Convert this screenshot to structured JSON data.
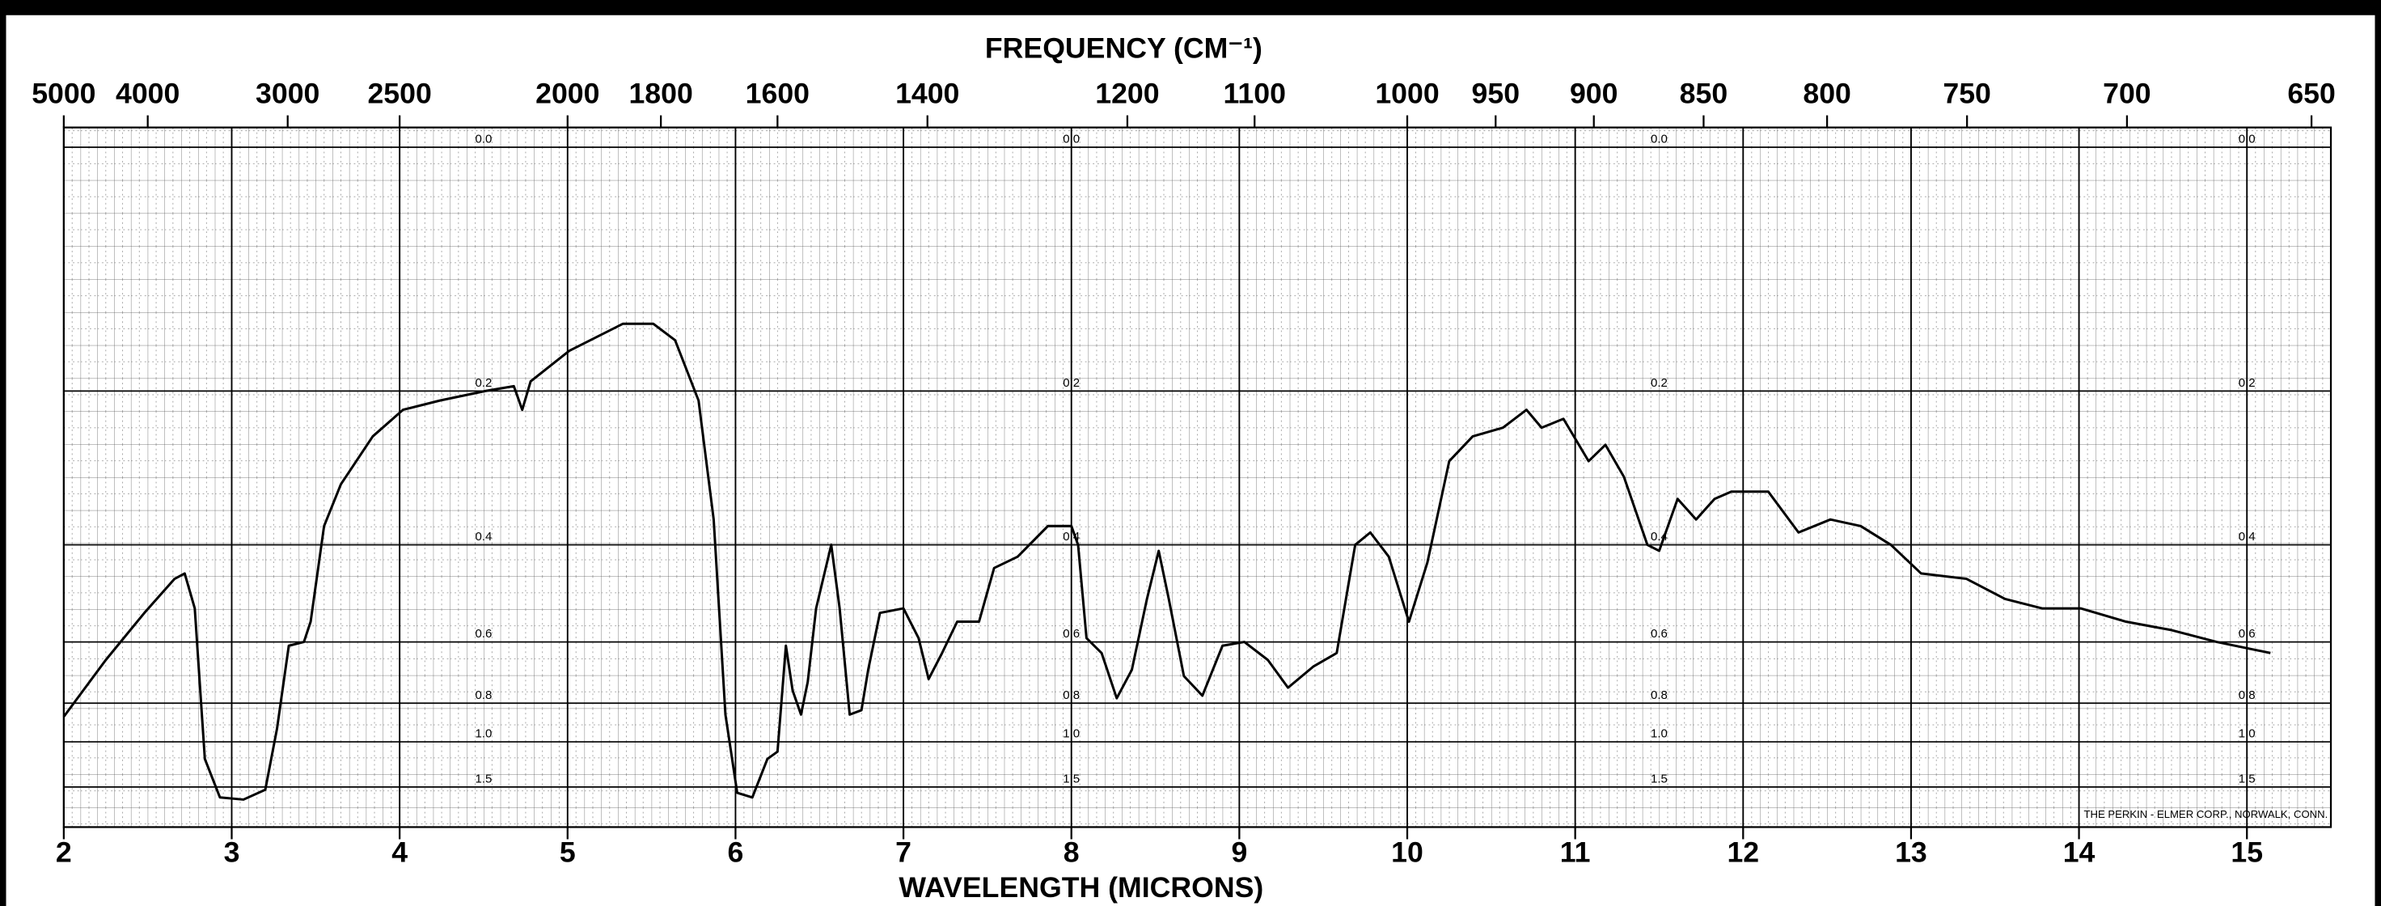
{
  "chart_data": {
    "type": "line",
    "title": "FREQUENCY (CM⁻¹)",
    "xlabel": "WAVELENGTH (MICRONS)",
    "annotation": "THE PERKIN - ELMER CORP., NORWALK, CONN.",
    "x": [
      2.0,
      2.25,
      2.48,
      2.66,
      2.72,
      2.78,
      2.84,
      2.93,
      3.07,
      3.2,
      3.27,
      3.34,
      3.43,
      3.47,
      3.55,
      3.65,
      3.84,
      4.02,
      4.24,
      4.51,
      4.68,
      4.73,
      4.78,
      5.01,
      5.33,
      5.51,
      5.64,
      5.78,
      5.87,
      5.94,
      6.01,
      6.1,
      6.19,
      6.25,
      6.3,
      6.34,
      6.39,
      6.43,
      6.48,
      6.57,
      6.62,
      6.68,
      6.75,
      6.79,
      6.86,
      7.0,
      7.09,
      7.15,
      7.23,
      7.32,
      7.45,
      7.54,
      7.68,
      7.86,
      8.0,
      8.04,
      8.09,
      8.18,
      8.27,
      8.36,
      8.45,
      8.52,
      8.58,
      8.67,
      8.78,
      8.9,
      9.03,
      9.17,
      9.29,
      9.44,
      9.58,
      9.69,
      9.78,
      9.89,
      10.01,
      10.12,
      10.25,
      10.39,
      10.57,
      10.71,
      10.8,
      10.93,
      11.08,
      11.18,
      11.29,
      11.43,
      11.5,
      11.61,
      11.72,
      11.83,
      11.93,
      12.15,
      12.33,
      12.52,
      12.7,
      12.88,
      13.06,
      13.33,
      13.56,
      13.78,
      14.01,
      14.28,
      14.55,
      14.82,
      15.14
    ],
    "series": [
      {
        "color": "#000000",
        "values": [
          0.86,
          0.65,
          0.53,
          0.46,
          0.45,
          0.52,
          1.13,
          1.8,
          1.9,
          1.56,
          0.92,
          0.61,
          0.6,
          0.55,
          0.37,
          0.31,
          0.25,
          0.22,
          0.21,
          0.2,
          0.195,
          0.22,
          0.19,
          0.16,
          0.135,
          0.135,
          0.15,
          0.21,
          0.36,
          0.85,
          1.64,
          1.8,
          1.13,
          1.07,
          0.61,
          0.75,
          0.85,
          0.72,
          0.52,
          0.4,
          0.52,
          0.85,
          0.83,
          0.68,
          0.53,
          0.52,
          0.59,
          0.71,
          0.63,
          0.55,
          0.55,
          0.44,
          0.42,
          0.37,
          0.37,
          0.4,
          0.59,
          0.63,
          0.78,
          0.68,
          0.5,
          0.41,
          0.5,
          0.7,
          0.77,
          0.61,
          0.6,
          0.65,
          0.74,
          0.67,
          0.63,
          0.4,
          0.38,
          0.42,
          0.55,
          0.43,
          0.28,
          0.25,
          0.24,
          0.22,
          0.24,
          0.23,
          0.28,
          0.26,
          0.3,
          0.4,
          0.41,
          0.33,
          0.36,
          0.33,
          0.32,
          0.32,
          0.38,
          0.36,
          0.37,
          0.4,
          0.45,
          0.46,
          0.5,
          0.52,
          0.52,
          0.55,
          0.57,
          0.6,
          0.63
        ]
      }
    ],
    "xlim": [
      2,
      15.5
    ],
    "xticks": [
      2,
      3,
      4,
      5,
      6,
      7,
      8,
      9,
      10,
      11,
      12,
      13,
      14,
      15
    ],
    "x2ticks": [
      5000,
      4000,
      3000,
      2500,
      2000,
      1800,
      1600,
      1400,
      1200,
      1100,
      1000,
      950,
      900,
      850,
      800,
      750,
      700,
      650
    ],
    "ylim": [
      0,
      2
    ],
    "yscale": "transmittance",
    "yticks": [
      {
        "value": 0,
        "label": "0.0"
      },
      0.2,
      0.4,
      0.6,
      0.8,
      {
        "value": 1,
        "label": "1.0"
      },
      1.5
    ],
    "grid": true
  }
}
